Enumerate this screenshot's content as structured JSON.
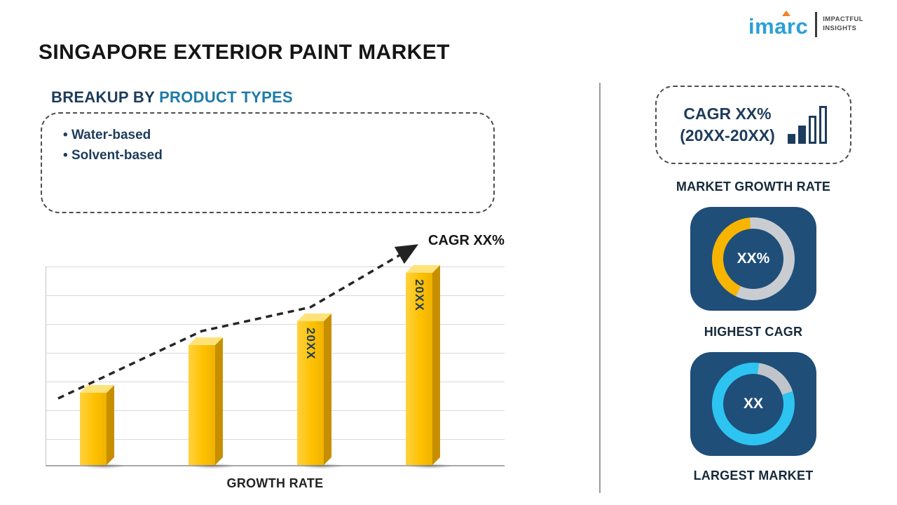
{
  "colors": {
    "navy_text": "#1E3C5C",
    "accent_blue": "#1E7BA8",
    "card_blue": "#1F4E79",
    "bar_gold": "#FFC000",
    "cyan": "#2EC4F1",
    "track_gray": "#C9CDD1",
    "logo_blue": "#2AA0D8",
    "logo_orange": "#F5821F"
  },
  "header": {
    "title": "SINGAPORE EXTERIOR PAINT MARKET",
    "logo": {
      "brand": "imarc",
      "tagline_line1": "IMPACTFUL",
      "tagline_line2": "INSIGHTS"
    }
  },
  "breakup": {
    "heading_prefix": "BREAKUP BY ",
    "heading_accent": "PRODUCT TYPES",
    "items": [
      "Water-based",
      "Solvent-based"
    ]
  },
  "chart_data": {
    "type": "bar",
    "title": "",
    "xlabel": "GROWTH RATE",
    "ylabel": "",
    "categories": [
      "",
      "",
      "20XX",
      "20XX"
    ],
    "values": [
      36,
      60,
      72,
      96
    ],
    "ylim": [
      0,
      100
    ],
    "grid": true,
    "bar_color": "#FFC000",
    "trend_label": "CAGR XX%",
    "trend_style": "dashed-arrow-ascending"
  },
  "sidebar": {
    "growth_box": {
      "line1": "CAGR XX%",
      "line2": "(20XX-20XX)"
    },
    "captions": {
      "growth": "MARKET GROWTH RATE",
      "cagr": "HIGHEST CAGR",
      "market": "LARGEST MARKET"
    },
    "highest_cagr": {
      "value": "XX%",
      "donut": {
        "stops": [
          [
            "#C9CDD1",
            0,
            205
          ],
          [
            "#F7B500",
            205,
            355
          ],
          [
            "#C9CDD1",
            355,
            360
          ]
        ]
      }
    },
    "largest_market": {
      "value": "XX",
      "donut": {
        "stops": [
          [
            "#2EC4F1",
            0,
            8
          ],
          [
            "#BFC5CA",
            8,
            72
          ],
          [
            "#2EC4F1",
            72,
            360
          ]
        ]
      }
    }
  }
}
